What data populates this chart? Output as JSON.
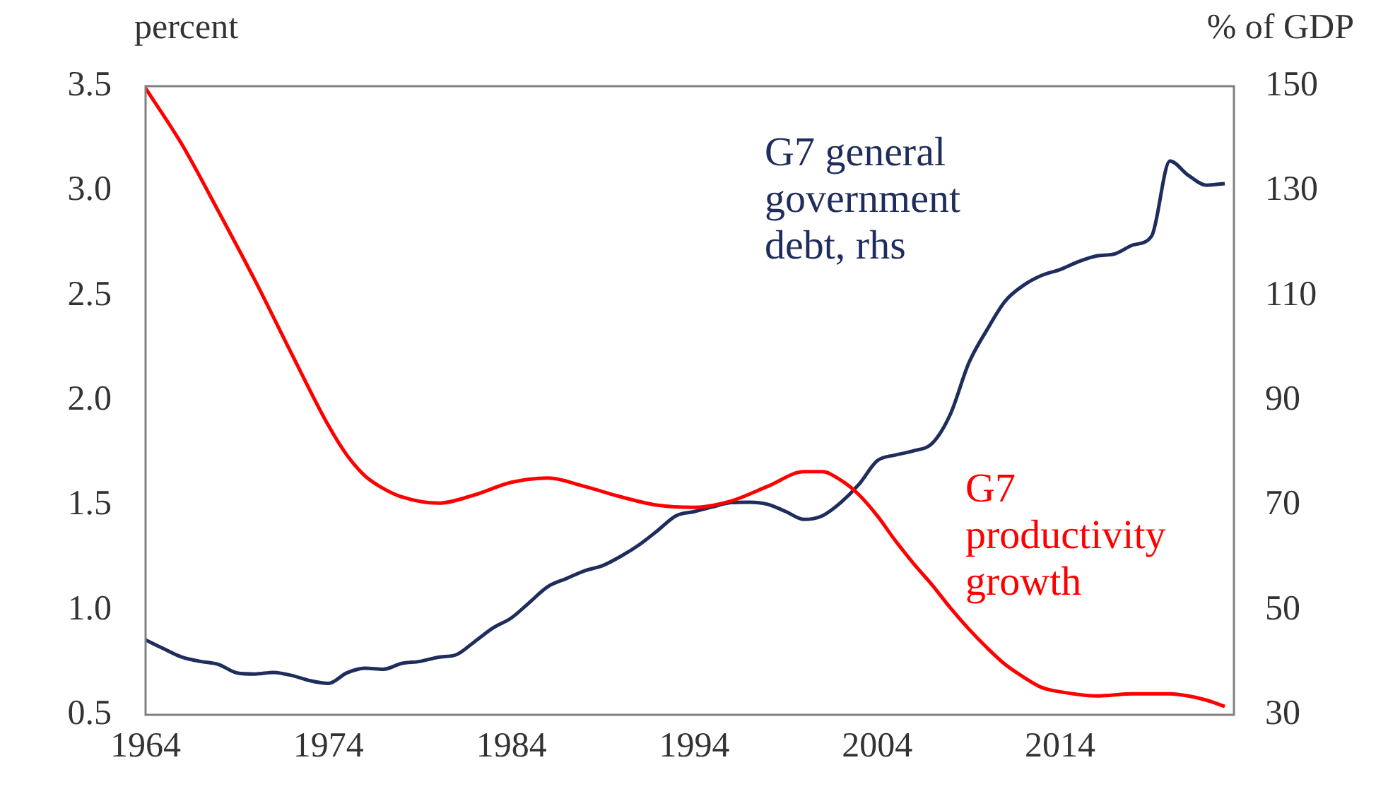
{
  "chart_data": {
    "type": "line",
    "ylabel": "percent",
    "y2label": "% of GDP",
    "legend": false,
    "grid": false,
    "marker": "none",
    "line_style": "solid",
    "xlim": [
      1964,
      2023.5
    ],
    "xticks": [
      1964,
      1974,
      1984,
      1994,
      2004,
      2014
    ],
    "ylim": [
      0.5,
      3.5
    ],
    "yticks": [
      0.5,
      {
        "value": 1,
        "label": "1.0"
      },
      1.5,
      {
        "value": 2,
        "label": "2.0"
      },
      2.5,
      {
        "value": 3,
        "label": "3.0"
      },
      3.5
    ],
    "y2lim": [
      30,
      150
    ],
    "y2ticks": [
      30,
      50,
      70,
      90,
      110,
      130,
      150
    ],
    "series": [
      {
        "name": "G7 productivity growth",
        "color": "#ff0000",
        "x": [
          1964,
          1966,
          1968,
          1970,
          1972,
          1974,
          1975,
          1976,
          1977,
          1978,
          1980,
          1982,
          1984,
          1986,
          1988,
          1990,
          1992,
          1994,
          1996,
          1998,
          2000,
          2001,
          2002,
          2003,
          2004,
          2005,
          2006,
          2007,
          2008,
          2009,
          2010,
          2011,
          2012,
          2013,
          2014,
          2016,
          2018,
          2020,
          2021,
          2022,
          2023
        ],
        "values": [
          3.49,
          3.22,
          2.9,
          2.57,
          2.22,
          1.88,
          1.74,
          1.64,
          1.58,
          1.54,
          1.51,
          1.55,
          1.61,
          1.63,
          1.59,
          1.54,
          1.5,
          1.49,
          1.52,
          1.59,
          1.66,
          1.66,
          1.62,
          1.55,
          1.45,
          1.33,
          1.22,
          1.12,
          1.01,
          0.91,
          0.82,
          0.74,
          0.68,
          0.63,
          0.61,
          0.59,
          0.6,
          0.6,
          0.59,
          0.57,
          0.54
        ]
      },
      {
        "name": "G7 general government debt, rhs",
        "color": "#1f2d5c",
        "axis": "y2",
        "x": [
          1964,
          1965,
          1966,
          1967,
          1968,
          1969,
          1970,
          1971,
          1972,
          1973,
          1974,
          1975,
          1976,
          1977,
          1978,
          1979,
          1980,
          1981,
          1982,
          1983,
          1984,
          1985,
          1986,
          1987,
          1988,
          1989,
          1990,
          1991,
          1992,
          1993,
          1994,
          1995,
          1996,
          1997,
          1998,
          1999,
          2000,
          2001,
          2002,
          2003,
          2004,
          2005,
          2006,
          2007,
          2008,
          2009,
          2010,
          2011,
          2012,
          2013,
          2014,
          2015,
          2016,
          2017,
          2018,
          2019,
          2020,
          2021,
          2022,
          2023
        ],
        "values": [
          44.3,
          42.6,
          41,
          40.2,
          39.6,
          38,
          37.8,
          38.1,
          37.5,
          36.5,
          36,
          38,
          38.9,
          38.7,
          39.8,
          40.2,
          41,
          41.5,
          44,
          46.6,
          48.5,
          51.5,
          54.5,
          56,
          57.5,
          58.5,
          60.3,
          62.5,
          65.2,
          68,
          68.8,
          69.7,
          70.5,
          70.6,
          70.2,
          68.8,
          67.3,
          68,
          70.5,
          74,
          78.5,
          79.6,
          80.4,
          81.8,
          87.4,
          97.1,
          103.5,
          109,
          112,
          113.9,
          115,
          116.5,
          117.6,
          118,
          119.7,
          121.4,
          135.7,
          133,
          131.1,
          131.4
        ]
      }
    ]
  }
}
